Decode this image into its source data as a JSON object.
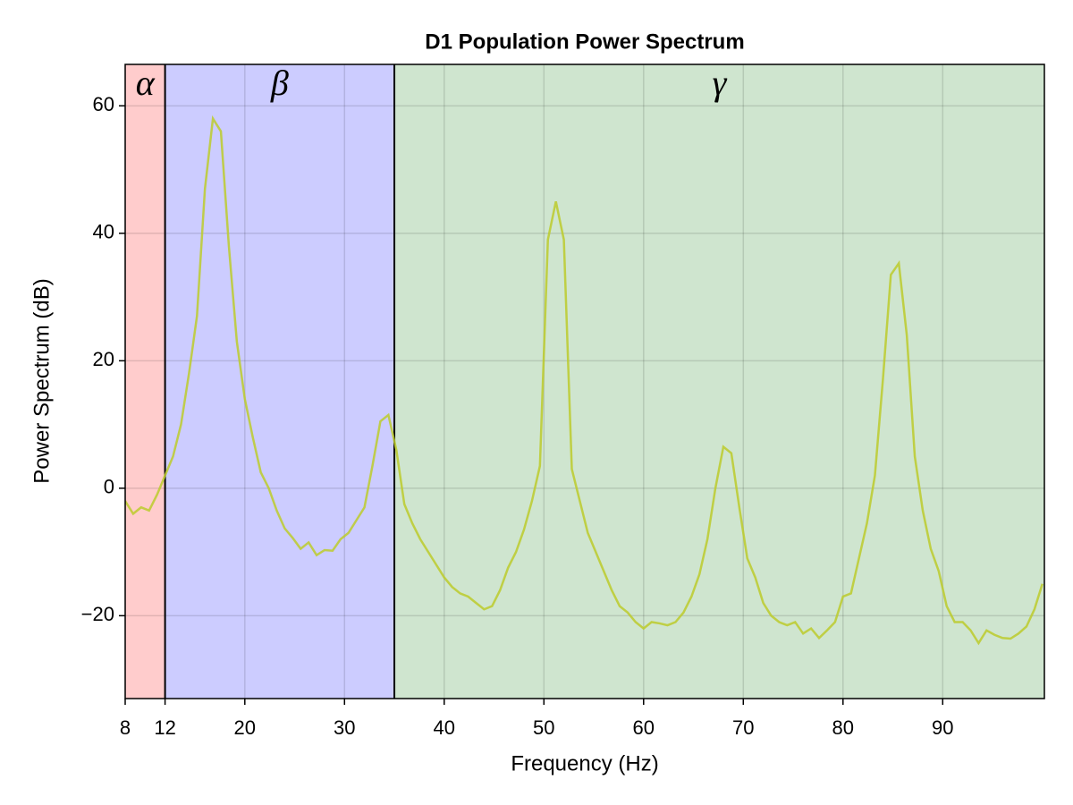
{
  "chart_data": {
    "type": "line",
    "title": "D1 Population Power Spectrum",
    "x_label": "Frequency (Hz)",
    "y_label": "Power Spectrum (dB)",
    "xlim": [
      8,
      100.2
    ],
    "ylim": [
      -33,
      66.5
    ],
    "xticks": [
      8,
      12,
      20,
      30,
      40,
      50,
      60,
      70,
      80,
      90
    ],
    "yticks": [
      {
        "value": -20,
        "label": "−20"
      },
      0,
      20,
      40,
      60
    ],
    "grid": true,
    "bands": [
      {
        "label": "α",
        "start": 8,
        "end": 12,
        "color": "#ffcccc"
      },
      {
        "label": "β",
        "start": 12,
        "end": 35,
        "color": "#ccccff"
      },
      {
        "label": "γ",
        "start": 35,
        "end": 100.2,
        "color": "#cfe5cf"
      }
    ],
    "x": [
      8,
      8.8,
      9.6,
      10.4,
      11.2,
      12,
      12.8,
      13.6,
      14.4,
      15.2,
      16,
      16.8,
      17.6,
      18.4,
      19.2,
      20,
      20.8,
      21.6,
      22.4,
      23.2,
      24,
      24.8,
      25.6,
      26.4,
      27.2,
      28,
      28.8,
      29.6,
      30.4,
      31.2,
      32,
      32.8,
      33.6,
      34.4,
      35.2,
      36,
      36.8,
      37.6,
      38.4,
      39.2,
      40,
      40.8,
      41.6,
      42.4,
      43.2,
      44,
      44.8,
      45.6,
      46.4,
      47.2,
      48,
      48.8,
      49.6,
      50.4,
      51.2,
      52,
      52.8,
      53.6,
      54.4,
      55.2,
      56,
      56.8,
      57.6,
      58.4,
      59.2,
      60,
      60.8,
      61.6,
      62.4,
      63.2,
      64,
      64.8,
      65.6,
      66.4,
      67.2,
      68,
      68.8,
      69.6,
      70.4,
      71.2,
      72,
      72.8,
      73.6,
      74.4,
      75.2,
      76,
      76.8,
      77.6,
      78.4,
      79.2,
      80,
      80.8,
      81.6,
      82.4,
      83.2,
      84,
      84.8,
      85.6,
      86.4,
      87.2,
      88,
      88.8,
      89.6,
      90.4,
      91.2,
      92,
      92.8,
      93.6,
      94.4,
      95.2,
      96,
      96.8,
      97.6,
      98.4,
      99.2,
      100
    ],
    "series": [
      {
        "color": "#bccb2c",
        "values": [
          -2,
          -4,
          -3,
          -3.5,
          -1,
          2,
          5,
          10,
          18,
          27,
          47,
          58,
          56,
          38,
          23,
          14,
          8,
          2.5,
          0,
          -3.5,
          -6.3,
          -7.8,
          -9.5,
          -8.5,
          -10.5,
          -9.7,
          -9.8,
          -8,
          -7,
          -5,
          -3,
          3.5,
          10.5,
          11.5,
          6,
          -2.5,
          -5.5,
          -8,
          -10,
          -12,
          -14,
          -15.5,
          -16.5,
          -17,
          -18,
          -19,
          -18.5,
          -16,
          -12.5,
          -10,
          -6.5,
          -2,
          3.5,
          39,
          45,
          39,
          3,
          -2,
          -7,
          -10,
          -13,
          -16,
          -18.5,
          -19.5,
          -21,
          -22,
          -21,
          -21.2,
          -21.5,
          -21,
          -19.5,
          -17,
          -13.5,
          -8,
          0,
          6.5,
          5.5,
          -3,
          -11,
          -14,
          -18,
          -20,
          -21,
          -21.5,
          -21,
          -22.8,
          -22,
          -23.5,
          -22.3,
          -21,
          -17,
          -16.5,
          -11,
          -5.5,
          2,
          17,
          33.5,
          35.3,
          24,
          5,
          -3.5,
          -9.5,
          -13,
          -18.5,
          -21,
          -21,
          -22.3,
          -24.3,
          -22.3,
          -23,
          -23.5,
          -23.6,
          -22.8,
          -21.7,
          -19,
          -15
        ]
      }
    ]
  }
}
